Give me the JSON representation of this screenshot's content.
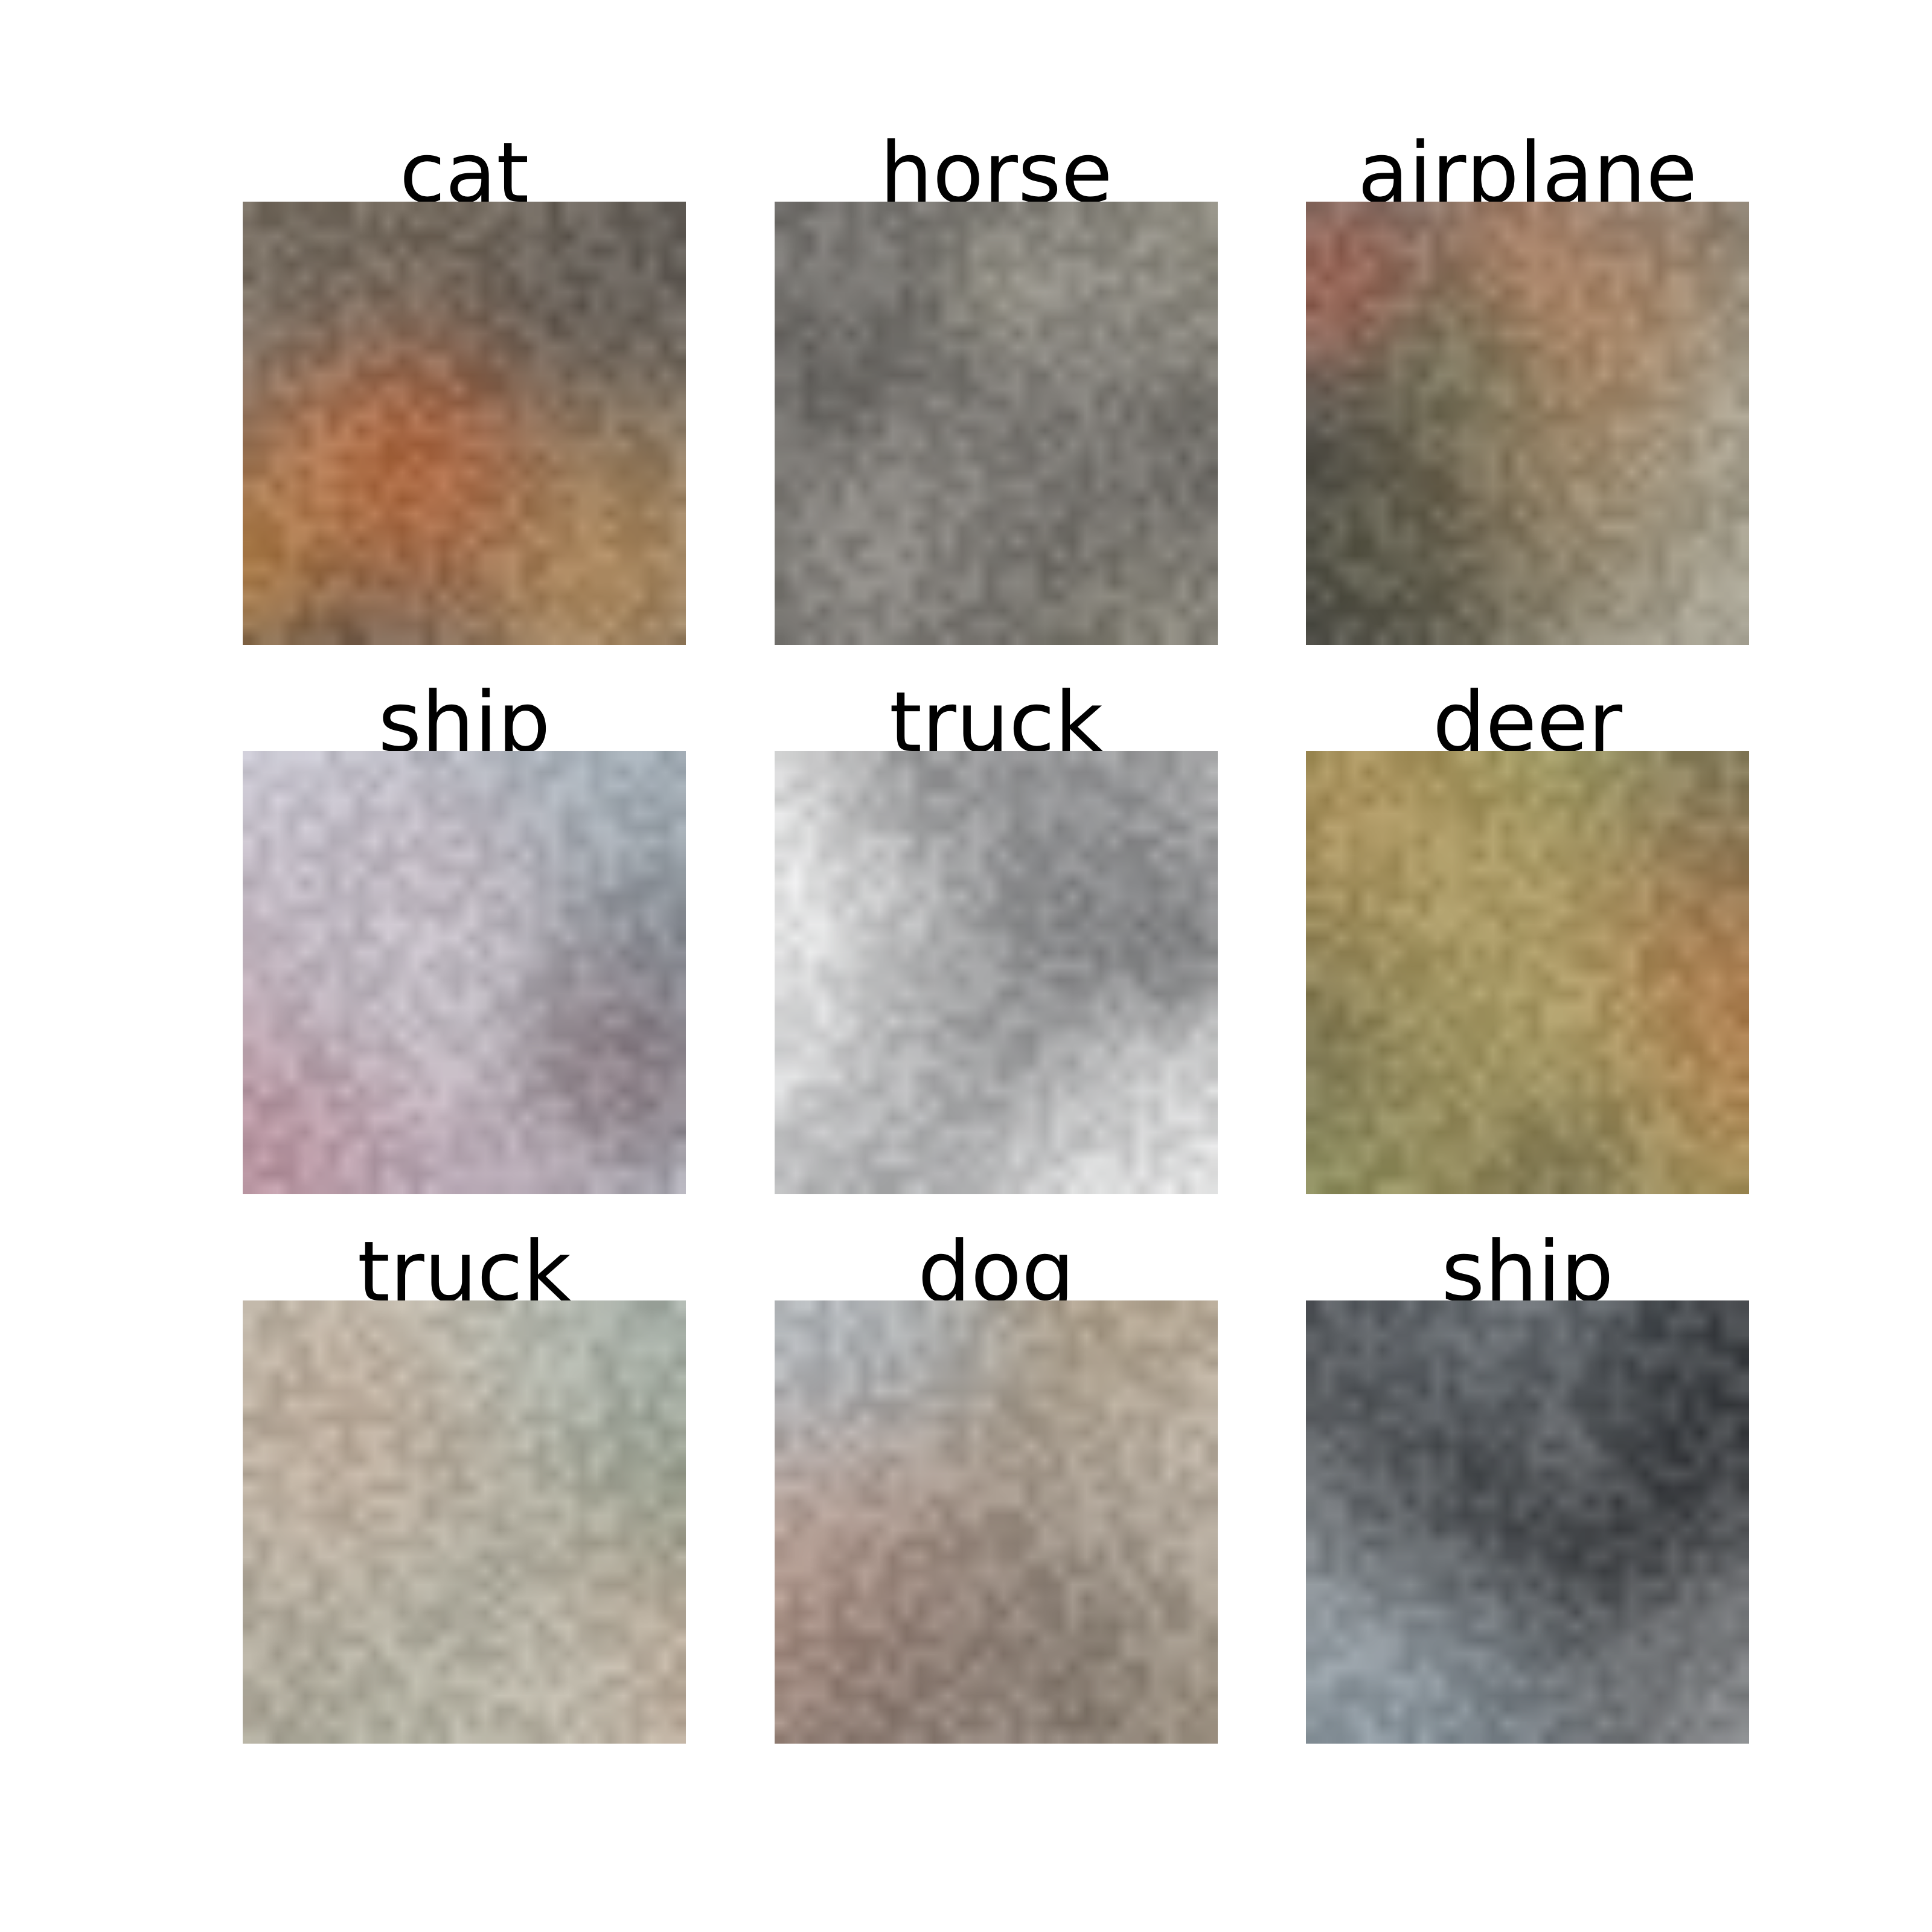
{
  "grid": {
    "rows": 3,
    "cols": 3,
    "cells": [
      {
        "label": "cat",
        "palette": [
          "#6f6b66",
          "#8a8580",
          "#55504b",
          "#a09b94",
          "#7c6e5c",
          "#c9a23c",
          "#d98a2b",
          "#e0531c",
          "#b6b0a8",
          "#6a7a5a"
        ]
      },
      {
        "label": "horse",
        "palette": [
          "#6e6c69",
          "#8e8b86",
          "#2a2826",
          "#e8e6e2",
          "#4b4946",
          "#b5b2ac",
          "#d7d3b8",
          "#5e5b57",
          "#a7a39c",
          "#3c3a37"
        ]
      },
      {
        "label": "airplane",
        "palette": [
          "#7d7c7a",
          "#989794",
          "#5d5c59",
          "#6c6c55",
          "#7b7a60",
          "#1e1f1d",
          "#e3dcd2",
          "#c69b6e",
          "#a25a46",
          "#53684e"
        ]
      },
      {
        "label": "ship",
        "palette": [
          "#cfd2dd",
          "#dde0ea",
          "#b9bfcd",
          "#e8eef0",
          "#8a8e96",
          "#7d8e97",
          "#2b2a2c",
          "#b07a86",
          "#c59aa4",
          "#9aa4ab"
        ]
      },
      {
        "label": "truck",
        "palette": [
          "#ffffff",
          "#f6f7f6",
          "#8b8c8e",
          "#6b6c6e",
          "#a5a6a8",
          "#4d4e50",
          "#c8c9cb",
          "#1f2022",
          "#e1e2e3",
          "#7a7b7d"
        ]
      },
      {
        "label": "deer",
        "palette": [
          "#9aa266",
          "#a6ae73",
          "#b59c6a",
          "#7a7160",
          "#5e5450",
          "#b8653c",
          "#d9cfc4",
          "#8f8a83",
          "#2e2a28",
          "#c7b29a"
        ]
      },
      {
        "label": "truck",
        "palette": [
          "#b9b1a3",
          "#c8c0b2",
          "#a49c8e",
          "#9db4b7",
          "#8a8e82",
          "#2b2a29",
          "#d8d1c6",
          "#7e8a76",
          "#c0a592",
          "#a7aba0"
        ]
      },
      {
        "label": "dog",
        "palette": [
          "#c6bcb0",
          "#d1c6b9",
          "#b8a89a",
          "#8b8a80",
          "#5e5b55",
          "#2d2b28",
          "#d6b1a6",
          "#c09b8f",
          "#a7b4c1",
          "#9f8e73"
        ]
      },
      {
        "label": "ship",
        "palette": [
          "#55585c",
          "#65686c",
          "#47494c",
          "#7b8e9a",
          "#8fa2ae",
          "#d7d9dc",
          "#1e2022",
          "#9a9c9e",
          "#6d7e86",
          "#3b3d40"
        ]
      }
    ]
  }
}
